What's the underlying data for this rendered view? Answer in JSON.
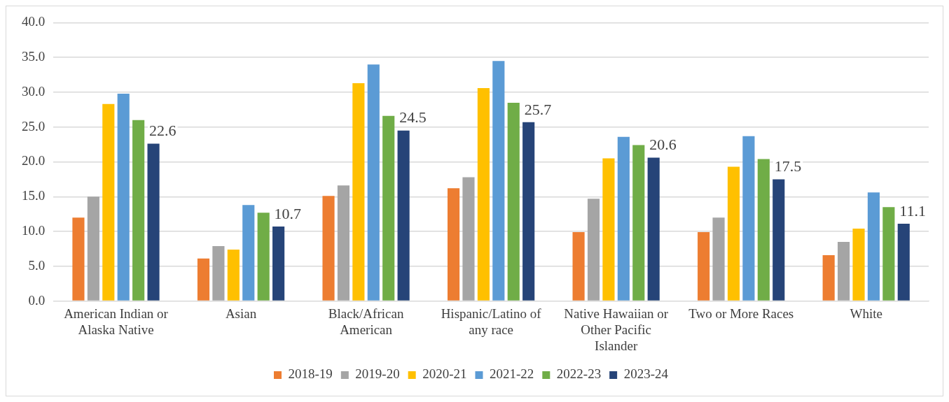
{
  "chart_data": {
    "type": "bar",
    "categories": [
      "American Indian or Alaska Native",
      "Asian",
      "Black/African American",
      "Hispanic/Latino of any race",
      "Native Hawaiian or Other Pacific Islander",
      "Two or More Races",
      "White"
    ],
    "series": [
      {
        "name": "2018-19",
        "color": "#ed7d31",
        "values": [
          12.0,
          6.1,
          15.1,
          16.2,
          9.9,
          9.9,
          6.6
        ]
      },
      {
        "name": "2019-20",
        "color": "#a5a5a5",
        "values": [
          15.0,
          7.9,
          16.6,
          17.8,
          14.7,
          12.0,
          8.5
        ]
      },
      {
        "name": "2020-21",
        "color": "#ffc000",
        "values": [
          28.3,
          7.4,
          31.3,
          30.6,
          20.5,
          19.3,
          10.4
        ]
      },
      {
        "name": "2021-22",
        "color": "#5b9bd5",
        "values": [
          29.8,
          13.8,
          34.0,
          34.5,
          23.6,
          23.7,
          15.6
        ]
      },
      {
        "name": "2022-23",
        "color": "#70ad47",
        "values": [
          26.0,
          12.7,
          26.6,
          28.5,
          22.4,
          20.4,
          13.5
        ]
      },
      {
        "name": "2023-24",
        "color": "#264478",
        "values": [
          22.6,
          10.7,
          24.5,
          25.7,
          20.6,
          17.5,
          11.1
        ],
        "value_labels": [
          "22.6",
          "10.7",
          "24.5",
          "25.7",
          "20.6",
          "17.5",
          "11.1"
        ]
      }
    ],
    "ylim": [
      0,
      40
    ],
    "yticks": [
      {
        "value": 0,
        "label": "0.0"
      },
      {
        "value": 5,
        "label": "5.0"
      },
      {
        "value": 10,
        "label": "10.0"
      },
      {
        "value": 15,
        "label": "15.0"
      },
      {
        "value": 20,
        "label": "20.0"
      },
      {
        "value": 25,
        "label": "25.0"
      },
      {
        "value": 30,
        "label": "30.0"
      },
      {
        "value": 35,
        "label": "35.0"
      },
      {
        "value": 40,
        "label": "40.0"
      }
    ],
    "grid": "y",
    "legend": "bottom"
  }
}
